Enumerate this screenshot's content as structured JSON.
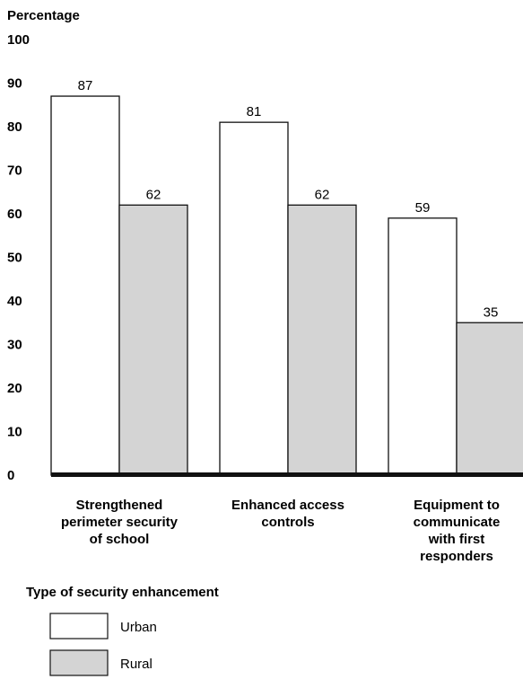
{
  "chart_data": {
    "type": "bar",
    "ylabel": "Percentage",
    "xlabel": "Type of security enhancement",
    "ylim": [
      0,
      100
    ],
    "yticks": [
      0,
      10,
      20,
      30,
      40,
      50,
      60,
      70,
      80,
      90,
      100
    ],
    "grid": false,
    "legend_position": "bottom-left",
    "categories": [
      [
        "Strengthened",
        "perimeter security",
        "of school"
      ],
      [
        "Enhanced access",
        "controls"
      ],
      [
        "Equipment to",
        "communicate",
        "with first",
        "responders"
      ]
    ],
    "series": [
      {
        "name": "Urban",
        "values": [
          87,
          81,
          59
        ],
        "color": "#ffffff"
      },
      {
        "name": "Rural",
        "values": [
          62,
          62,
          35
        ],
        "color": "#d4d4d4"
      }
    ]
  }
}
